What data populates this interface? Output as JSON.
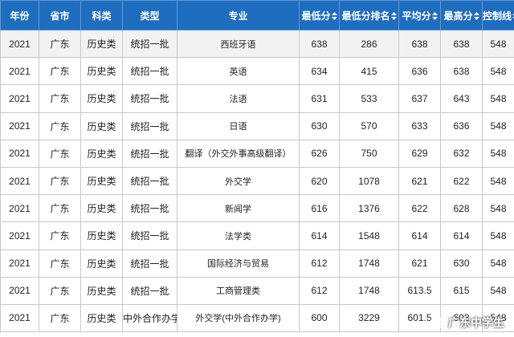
{
  "headers": [
    "年份",
    "省市",
    "科类",
    "类型",
    "专业",
    "最低分",
    "最低分排名",
    "平均分",
    "最高分",
    "控制线"
  ],
  "rows": [
    [
      "2021",
      "广东",
      "历史类",
      "统招一批",
      "西班牙语",
      "638",
      "286",
      "638",
      "638",
      "548"
    ],
    [
      "2021",
      "广东",
      "历史类",
      "统招一批",
      "英语",
      "634",
      "415",
      "636",
      "638",
      "548"
    ],
    [
      "2021",
      "广东",
      "历史类",
      "统招一批",
      "法语",
      "631",
      "533",
      "637",
      "643",
      "548"
    ],
    [
      "2021",
      "广东",
      "历史类",
      "统招一批",
      "日语",
      "630",
      "570",
      "633",
      "636",
      "548"
    ],
    [
      "2021",
      "广东",
      "历史类",
      "统招一批",
      "翻译（外交外事高级翻译）",
      "626",
      "750",
      "629",
      "632",
      "548"
    ],
    [
      "2021",
      "广东",
      "历史类",
      "统招一批",
      "外交学",
      "620",
      "1078",
      "621",
      "622",
      "548"
    ],
    [
      "2021",
      "广东",
      "历史类",
      "统招一批",
      "新闻学",
      "616",
      "1376",
      "622",
      "628",
      "548"
    ],
    [
      "2021",
      "广东",
      "历史类",
      "统招一批",
      "法学类",
      "614",
      "1548",
      "614",
      "614",
      "548"
    ],
    [
      "2021",
      "广东",
      "历史类",
      "统招一批",
      "国际经济与贸易",
      "612",
      "1748",
      "621",
      "630",
      "548"
    ],
    [
      "2021",
      "广东",
      "历史类",
      "统招一批",
      "工商管理类",
      "612",
      "1748",
      "613.5",
      "615",
      "548"
    ],
    [
      "2021",
      "广东",
      "历史类",
      "中外合作办学",
      "外交学(中外合作办学)",
      "600",
      "3229",
      "601.5",
      "603",
      "548"
    ]
  ],
  "watermark": "广东中学生",
  "colors": {
    "header_bg": "#1f6dbf",
    "header_text": "#ffffff",
    "border": "#c8c8c8"
  },
  "icons": {
    "sort": "sort-arrows-icon",
    "watermark_logo": "wechat-logo-icon"
  }
}
